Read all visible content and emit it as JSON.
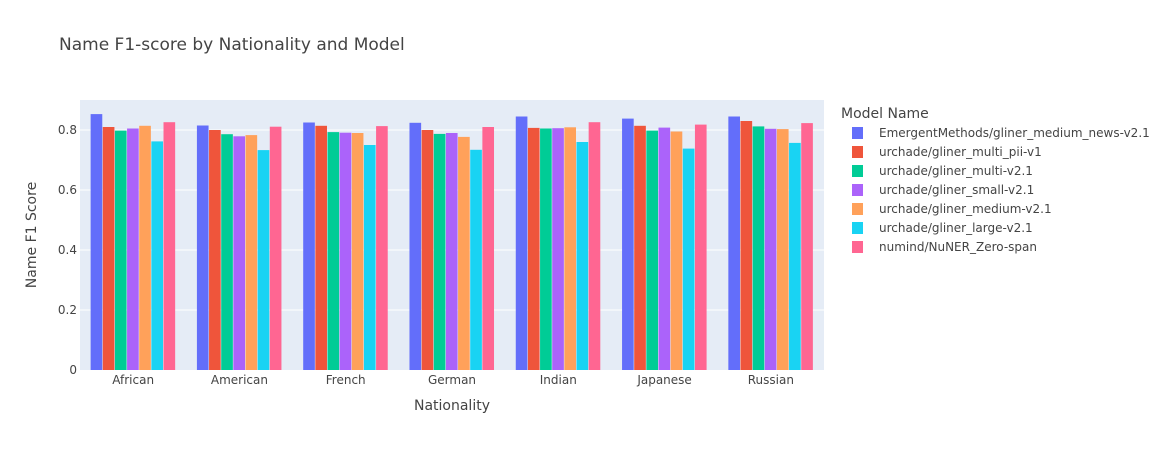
{
  "chart_data": {
    "type": "bar",
    "title": "Name F1-score by Nationality and Model",
    "xlabel": "Nationality",
    "ylabel": "Name F1 Score",
    "ylim": [
      0,
      0.9
    ],
    "yticks": [
      0,
      0.2,
      0.4,
      0.6,
      0.8
    ],
    "ytick_labels": [
      "0",
      "0.2",
      "0.4",
      "0.6",
      "0.8"
    ],
    "grid": true,
    "legend_title": "Model Name",
    "legend_position": "right",
    "categories": [
      "African",
      "American",
      "French",
      "German",
      "Indian",
      "Japanese",
      "Russian"
    ],
    "series": [
      {
        "name": "EmergentMethods/gliner_medium_news-v2.1",
        "color": "#636efa",
        "values": [
          0.853,
          0.815,
          0.825,
          0.824,
          0.845,
          0.838,
          0.845
        ]
      },
      {
        "name": "urchade/gliner_multi_pii-v1",
        "color": "#ef553b",
        "values": [
          0.81,
          0.8,
          0.814,
          0.8,
          0.807,
          0.814,
          0.83
        ]
      },
      {
        "name": "urchade/gliner_multi-v2.1",
        "color": "#00cc96",
        "values": [
          0.798,
          0.786,
          0.793,
          0.787,
          0.805,
          0.798,
          0.812
        ]
      },
      {
        "name": "urchade/gliner_small-v2.1",
        "color": "#ab63fa",
        "values": [
          0.805,
          0.779,
          0.791,
          0.79,
          0.806,
          0.808,
          0.804
        ]
      },
      {
        "name": "urchade/gliner_medium-v2.1",
        "color": "#ffa15a",
        "values": [
          0.814,
          0.783,
          0.79,
          0.777,
          0.809,
          0.795,
          0.803
        ]
      },
      {
        "name": "urchade/gliner_large-v2.1",
        "color": "#19d3f3",
        "values": [
          0.762,
          0.733,
          0.75,
          0.734,
          0.76,
          0.738,
          0.757
        ]
      },
      {
        "name": "numind/NuNER_Zero-span",
        "color": "#ff6692",
        "values": [
          0.826,
          0.811,
          0.813,
          0.81,
          0.826,
          0.818,
          0.823
        ]
      }
    ]
  }
}
